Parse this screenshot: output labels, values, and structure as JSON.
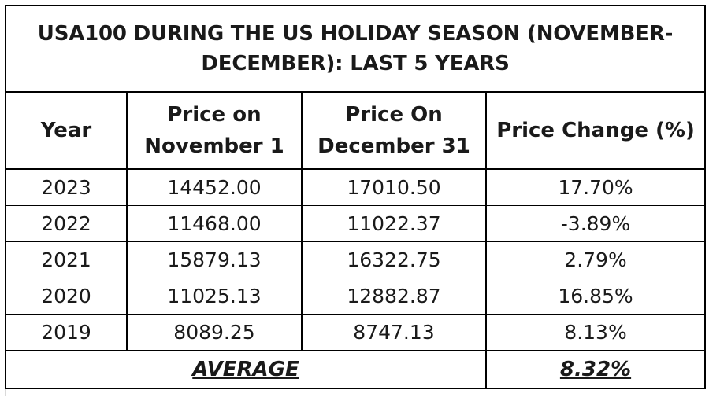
{
  "table": {
    "title": "USA100 DURING THE US HOLIDAY SEASON (NOVEMBER-DECEMBER): LAST 5 YEARS",
    "headers": {
      "year": "Year",
      "nov_line1": "Price on",
      "nov_line2": "November 1",
      "dec_line1": "Price On",
      "dec_line2": "December 31",
      "change": "Price Change (%)"
    },
    "rows": [
      {
        "year": "2023",
        "nov1": "14452.00",
        "dec31": "17010.50",
        "change": "17.70%"
      },
      {
        "year": "2022",
        "nov1": "11468.00",
        "dec31": "11022.37",
        "change": "-3.89%"
      },
      {
        "year": "2021",
        "nov1": "15879.13",
        "dec31": "16322.75",
        "change": "2.79%"
      },
      {
        "year": "2020",
        "nov1": "11025.13",
        "dec31": "12882.87",
        "change": "16.85%"
      },
      {
        "year": "2019",
        "nov1": "8089.25",
        "dec31": "8747.13",
        "change": "8.13%"
      }
    ],
    "average_label": "AVERAGE",
    "average_value": "8.32%"
  }
}
